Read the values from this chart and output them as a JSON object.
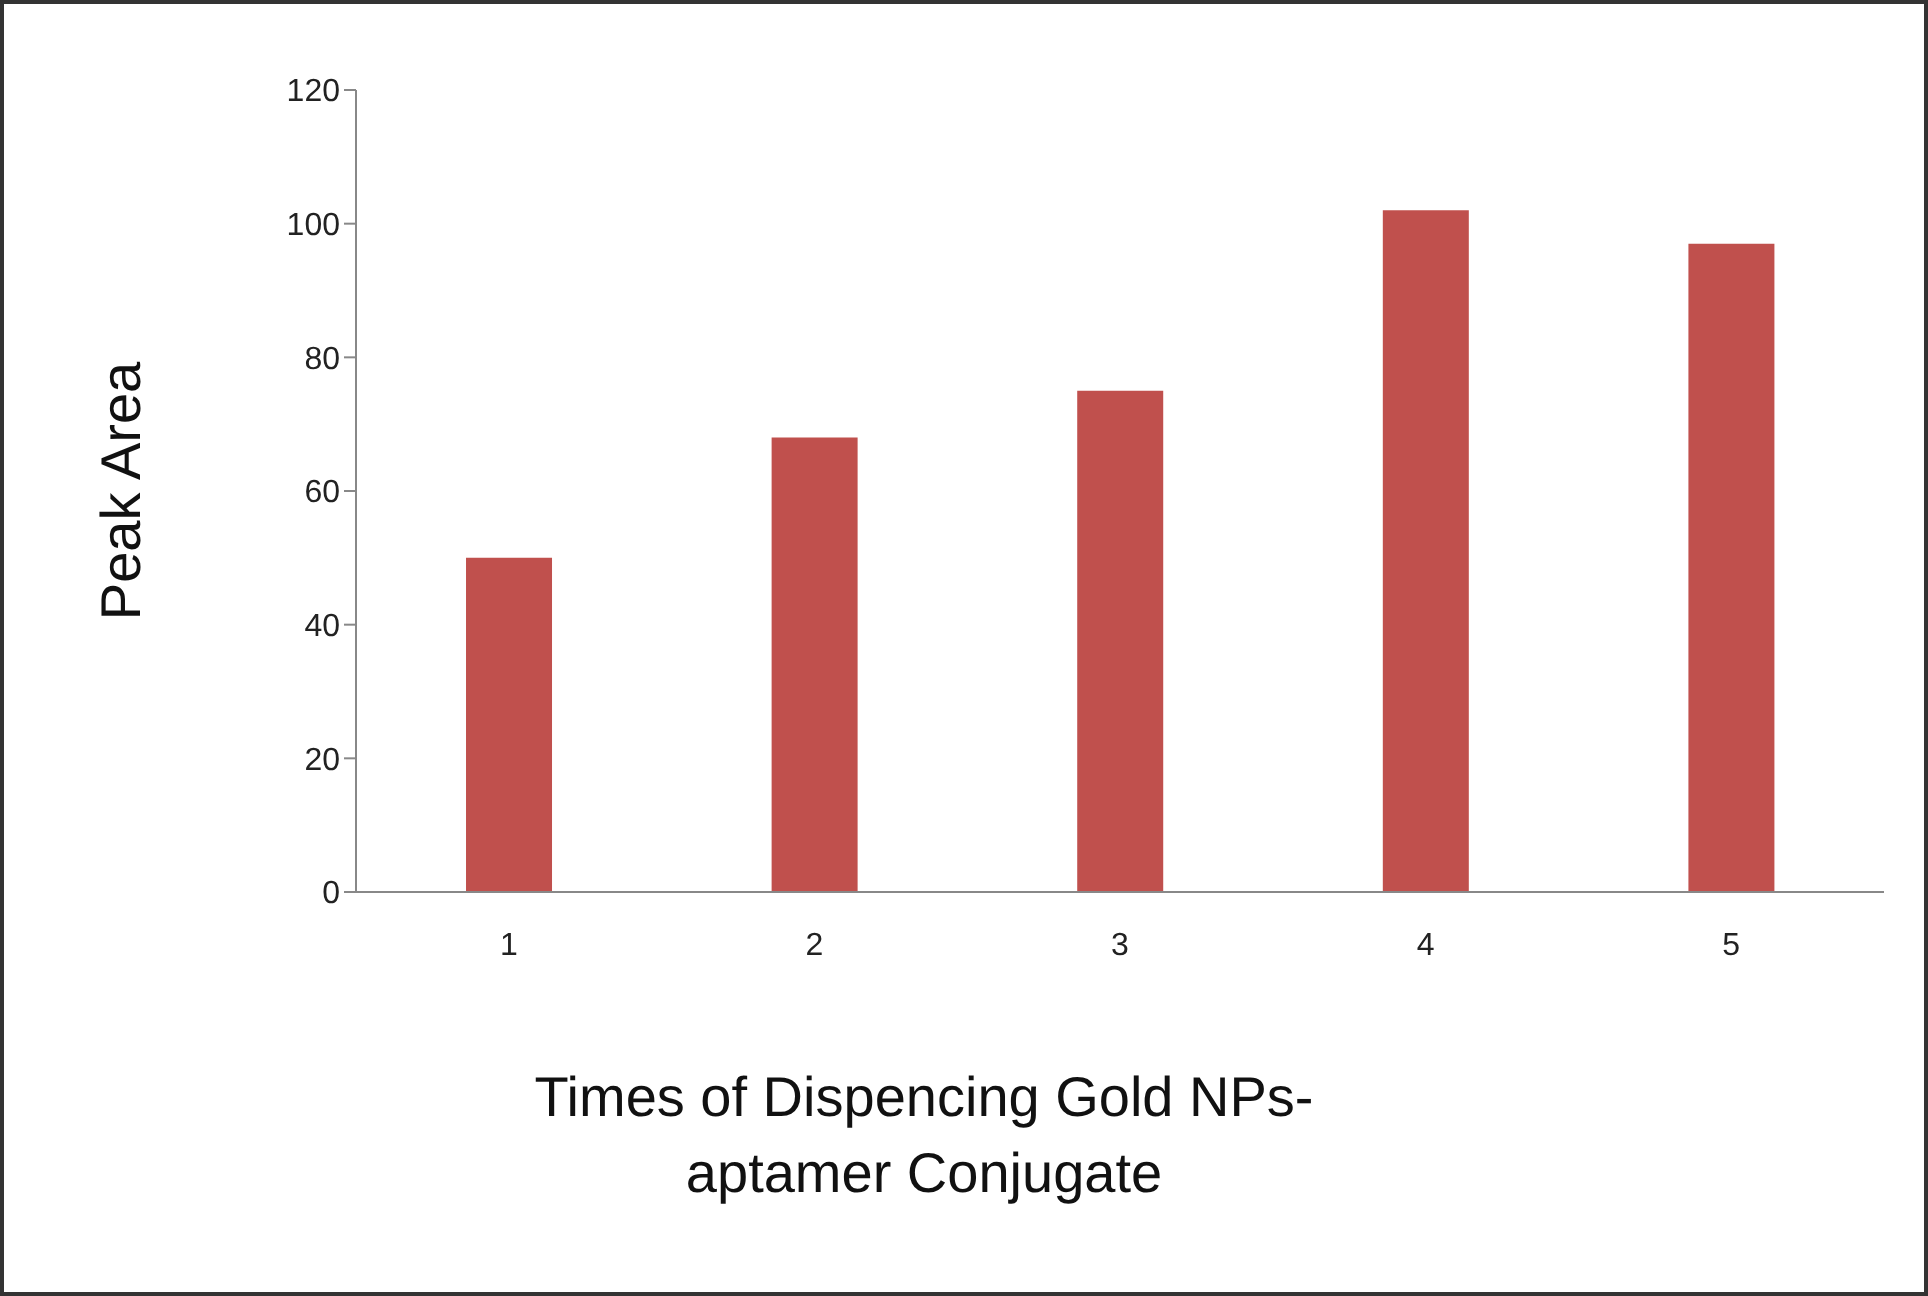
{
  "chart_data": {
    "type": "bar",
    "xlabel": "Times of Dispencing Gold NPs-aptamer Conjugate",
    "ylabel": "Peak Area",
    "categories": [
      "1",
      "2",
      "3",
      "4",
      "5"
    ],
    "values": [
      50,
      68,
      75,
      102,
      97
    ],
    "color": "#c0504d",
    "ylim": [
      0,
      120
    ],
    "yticks": [
      0,
      20,
      40,
      60,
      80,
      100,
      120
    ],
    "grid": false,
    "legend": false
  }
}
